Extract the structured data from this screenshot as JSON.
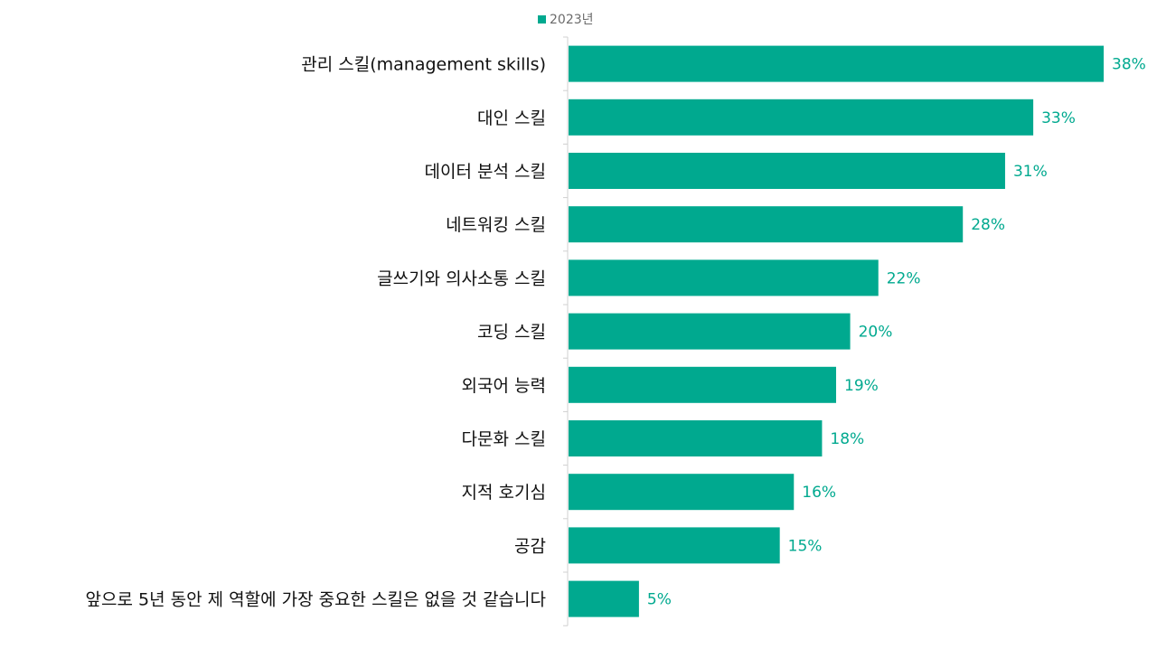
{
  "chart_data": {
    "type": "bar",
    "orientation": "horizontal",
    "categories": [
      "관리 스킬(management skills)",
      "대인 스킬",
      "데이터 분석 스킬",
      "네트워킹 스킬",
      "글쓰기와 의사소통 스킬",
      "코딩 스킬",
      "외국어 능력",
      "다문화 스킬",
      "지적 호기심",
      "공감",
      "앞으로 5년 동안 제 역할에 가장 중요한 스킬은 없을 것 같습니다"
    ],
    "series": [
      {
        "name": "2023년",
        "values": [
          38,
          33,
          31,
          28,
          22,
          20,
          19,
          18,
          16,
          15,
          5
        ],
        "value_labels": [
          "38%",
          "33%",
          "31%",
          "28%",
          "22%",
          "20%",
          "19%",
          "18%",
          "16%",
          "15%",
          "5%"
        ],
        "color": "#00a98f"
      }
    ],
    "xlim": [
      0,
      40
    ],
    "legend_position": "top",
    "grid": false
  },
  "colors": {
    "bar": "#00a98f",
    "value_label": "#00a98f",
    "axis": "#d0d0d0",
    "text": "#111111",
    "legend_text": "#6b6b6b"
  }
}
